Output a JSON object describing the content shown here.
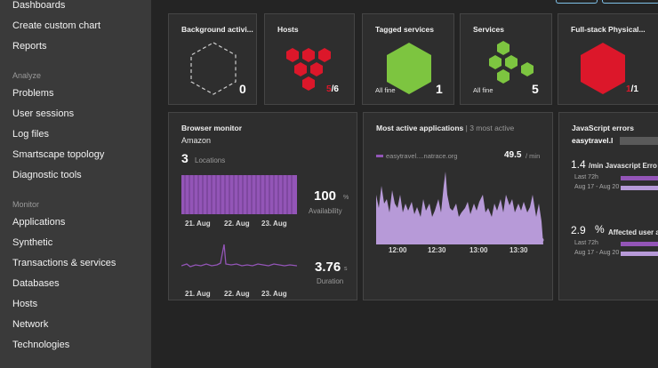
{
  "sidebar": {
    "items_top": [
      "Dashboards",
      "Create custom chart",
      "Reports"
    ],
    "section_analyze": "Analyze",
    "items_analyze": [
      "Problems",
      "User sessions",
      "Log files",
      "Smartscape topology",
      "Diagnostic tools"
    ],
    "section_monitor": "Monitor",
    "items_monitor": [
      "Applications",
      "Synthetic",
      "Transactions & services",
      "Databases",
      "Hosts",
      "Network",
      "Technologies"
    ]
  },
  "tiles": {
    "background": {
      "title": "Background activi...",
      "count": "0"
    },
    "hosts": {
      "title": "Hosts",
      "count_bad": "5",
      "count_total": "/6"
    },
    "tagged": {
      "title": "Tagged services",
      "status": "All fine",
      "count": "1"
    },
    "services": {
      "title": "Services",
      "status": "All fine",
      "count": "5"
    },
    "fullstack": {
      "title": "Full-stack Physical...",
      "count_bad": "1",
      "count_total": "/1"
    }
  },
  "browser_monitor": {
    "title": "Browser monitor",
    "name": "Amazon",
    "locations_count": "3",
    "locations_label": "Locations",
    "availability_value": "100",
    "availability_unit": "%",
    "availability_label": "Availability",
    "duration_value": "3.76",
    "duration_unit": "s",
    "duration_label": "Duration",
    "dates": [
      "21. Aug",
      "22. Aug",
      "23. Aug"
    ]
  },
  "active_apps": {
    "title": "Most active applications",
    "subtitle": "| 3 most active",
    "app_name": "easytravel....natrace.org",
    "rate_value": "49.5",
    "rate_unit": "/ min",
    "times": [
      "12:00",
      "12:30",
      "13:00",
      "13:30"
    ]
  },
  "js_errors": {
    "title": "JavaScript errors",
    "app": "easytravel.l",
    "rate_value": "1.4",
    "rate_label": "/min Javascript Erro",
    "pct_value": "2.9",
    "pct_unit": "%",
    "pct_label": "Affected user a",
    "legend_a": "Last 72h",
    "legend_b": "Aug 17 - Aug 20"
  },
  "colors": {
    "green": "#7dc540",
    "red": "#dc172a",
    "purple": "#9355b7",
    "lavender": "#b79ad8"
  }
}
